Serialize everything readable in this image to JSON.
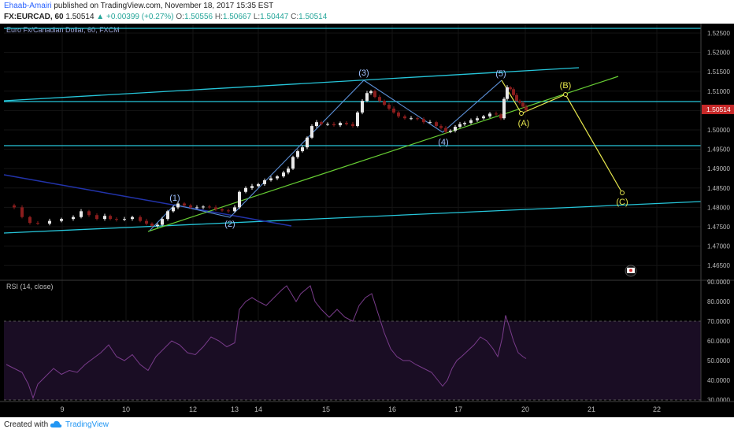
{
  "header": {
    "author": "Ehaab-Amairi",
    "published": "published on TradingView.com, November 18, 2017 15:35 EST",
    "symbol": "FX:EURCAD, 60",
    "last": "1.50514",
    "change": "+0.00399 (+0.27%)",
    "o_label": "O:",
    "o_value": "1.50556",
    "h_label": "H:",
    "h_value": "1.50667",
    "l_label": "L:",
    "l_value": "1.50447",
    "c_label": "C:",
    "c_value": "1.50514"
  },
  "footer": {
    "created": "Created with",
    "brand": "TradingView"
  },
  "colors": {
    "background": "#000000",
    "up_candle": "#e8e8e8",
    "down_candle": "#8a1d1d",
    "channel_line": "#26c6da",
    "trend_green": "#66cc33",
    "wave_path": "#5b8fd6",
    "corrective_path": "#e6e64d",
    "down_trend": "#2233aa",
    "rsi_line": "#7a3c8c",
    "rsi_band": "#1a0d24",
    "price_tag": "#c62828"
  },
  "chart_data": [
    {
      "type": "candlestick",
      "title": "Euro Fx/Canadian Dollar, 60, FXCM",
      "x_tick_labels": [
        "9",
        "10",
        "12",
        "13",
        "14",
        "15",
        "16",
        "17",
        "20",
        "21",
        "22"
      ],
      "y_tick_labels": [
        "1.52500",
        "1.52000",
        "1.51500",
        "1.51000",
        "1.50500",
        "1.50000",
        "1.49500",
        "1.49000",
        "1.48500",
        "1.48000",
        "1.47500",
        "1.47000",
        "1.46500"
      ],
      "ylim": [
        1.4625,
        1.5285
      ],
      "current_price_label": "1.50514",
      "current_price": 1.50514,
      "approx_close_path": [
        [
          0,
          1.4805
        ],
        [
          10,
          1.48
        ],
        [
          20,
          1.4775
        ],
        [
          30,
          1.476
        ],
        [
          40,
          1.4758
        ],
        [
          55,
          1.4765
        ],
        [
          70,
          1.477
        ],
        [
          85,
          1.4775
        ],
        [
          95,
          1.479
        ],
        [
          105,
          1.478
        ],
        [
          115,
          1.477
        ],
        [
          125,
          1.4778
        ],
        [
          132,
          1.477
        ],
        [
          140,
          1.4768
        ],
        [
          150,
          1.477
        ],
        [
          160,
          1.4775
        ],
        [
          170,
          1.4765
        ],
        [
          178,
          1.4758
        ],
        [
          185,
          1.4752
        ],
        [
          192,
          1.4755
        ],
        [
          198,
          1.477
        ],
        [
          205,
          1.479
        ],
        [
          212,
          1.48
        ],
        [
          218,
          1.481
        ],
        [
          226,
          1.4805
        ],
        [
          234,
          1.48
        ],
        [
          242,
          1.48
        ],
        [
          250,
          1.4802
        ],
        [
          258,
          1.48
        ],
        [
          266,
          1.4795
        ],
        [
          274,
          1.4792
        ],
        [
          282,
          1.479
        ],
        [
          290,
          1.48
        ],
        [
          296,
          1.484
        ],
        [
          304,
          1.485
        ],
        [
          312,
          1.4855
        ],
        [
          320,
          1.486
        ],
        [
          328,
          1.487
        ],
        [
          336,
          1.4875
        ],
        [
          344,
          1.488
        ],
        [
          352,
          1.489
        ],
        [
          358,
          1.49
        ],
        [
          364,
          1.493
        ],
        [
          370,
          1.4945
        ],
        [
          376,
          1.4955
        ],
        [
          382,
          1.498
        ],
        [
          388,
          1.501
        ],
        [
          394,
          1.502
        ],
        [
          400,
          1.5015
        ],
        [
          408,
          1.5015
        ],
        [
          416,
          1.5012
        ],
        [
          424,
          1.5018
        ],
        [
          432,
          1.5015
        ],
        [
          440,
          1.501
        ],
        [
          446,
          1.5045
        ],
        [
          452,
          1.5075
        ],
        [
          458,
          1.5095
        ],
        [
          463,
          1.51
        ],
        [
          468,
          1.5085
        ],
        [
          474,
          1.5075
        ],
        [
          480,
          1.5065
        ],
        [
          486,
          1.5055
        ],
        [
          492,
          1.5045
        ],
        [
          498,
          1.5035
        ],
        [
          506,
          1.503
        ],
        [
          514,
          1.503
        ],
        [
          522,
          1.5028
        ],
        [
          530,
          1.502
        ],
        [
          538,
          1.502
        ],
        [
          546,
          1.501
        ],
        [
          552,
          1.5005
        ],
        [
          558,
          1.4995
        ],
        [
          564,
          1.4998
        ],
        [
          570,
          1.5008
        ],
        [
          576,
          1.5015
        ],
        [
          582,
          1.5018
        ],
        [
          590,
          1.5025
        ],
        [
          598,
          1.503
        ],
        [
          606,
          1.5035
        ],
        [
          614,
          1.5042
        ],
        [
          622,
          1.504
        ],
        [
          628,
          1.503
        ],
        [
          632,
          1.508
        ],
        [
          636,
          1.511
        ],
        [
          640,
          1.5105
        ],
        [
          644,
          1.509
        ],
        [
          648,
          1.5075
        ],
        [
          652,
          1.507
        ],
        [
          656,
          1.506
        ],
        [
          660,
          1.5051
        ]
      ],
      "wave_labels": [
        "(1)",
        "(2)",
        "(3)",
        "(4)",
        "(5)"
      ],
      "corrective_labels": [
        "(A)",
        "(B)",
        "(C)"
      ]
    },
    {
      "type": "line",
      "title": "RSI (14, close)",
      "y_tick_labels": [
        "90.0000",
        "80.0000",
        "70.0000",
        "60.0000",
        "50.0000",
        "40.0000",
        "30.0000"
      ],
      "ylim": [
        26,
        92
      ],
      "bands": [
        30,
        70
      ],
      "values": [
        [
          0,
          48
        ],
        [
          10,
          46
        ],
        [
          20,
          44
        ],
        [
          28,
          38
        ],
        [
          34,
          31
        ],
        [
          40,
          38
        ],
        [
          50,
          42
        ],
        [
          60,
          46
        ],
        [
          70,
          43
        ],
        [
          80,
          45
        ],
        [
          90,
          44
        ],
        [
          100,
          48
        ],
        [
          110,
          51
        ],
        [
          120,
          54
        ],
        [
          130,
          58
        ],
        [
          140,
          52
        ],
        [
          150,
          50
        ],
        [
          160,
          53
        ],
        [
          170,
          48
        ],
        [
          180,
          45
        ],
        [
          190,
          52
        ],
        [
          200,
          56
        ],
        [
          210,
          60
        ],
        [
          220,
          58
        ],
        [
          230,
          54
        ],
        [
          240,
          53
        ],
        [
          250,
          57
        ],
        [
          260,
          62
        ],
        [
          270,
          60
        ],
        [
          280,
          57
        ],
        [
          290,
          59
        ],
        [
          296,
          76
        ],
        [
          304,
          80
        ],
        [
          312,
          82
        ],
        [
          320,
          80
        ],
        [
          330,
          78
        ],
        [
          340,
          82
        ],
        [
          350,
          86
        ],
        [
          356,
          88
        ],
        [
          362,
          84
        ],
        [
          368,
          80
        ],
        [
          374,
          84
        ],
        [
          380,
          86
        ],
        [
          386,
          88
        ],
        [
          392,
          80
        ],
        [
          400,
          76
        ],
        [
          410,
          72
        ],
        [
          420,
          76
        ],
        [
          430,
          72
        ],
        [
          440,
          70
        ],
        [
          448,
          78
        ],
        [
          456,
          82
        ],
        [
          464,
          84
        ],
        [
          472,
          74
        ],
        [
          480,
          64
        ],
        [
          488,
          56
        ],
        [
          496,
          52
        ],
        [
          504,
          50
        ],
        [
          512,
          50
        ],
        [
          520,
          48
        ],
        [
          530,
          46
        ],
        [
          540,
          44
        ],
        [
          548,
          40
        ],
        [
          554,
          37
        ],
        [
          560,
          40
        ],
        [
          566,
          46
        ],
        [
          572,
          50
        ],
        [
          578,
          52
        ],
        [
          586,
          55
        ],
        [
          594,
          58
        ],
        [
          602,
          62
        ],
        [
          610,
          60
        ],
        [
          618,
          56
        ],
        [
          624,
          52
        ],
        [
          630,
          62
        ],
        [
          634,
          73
        ],
        [
          638,
          68
        ],
        [
          644,
          60
        ],
        [
          650,
          54
        ],
        [
          656,
          52
        ],
        [
          660,
          51
        ]
      ]
    }
  ]
}
